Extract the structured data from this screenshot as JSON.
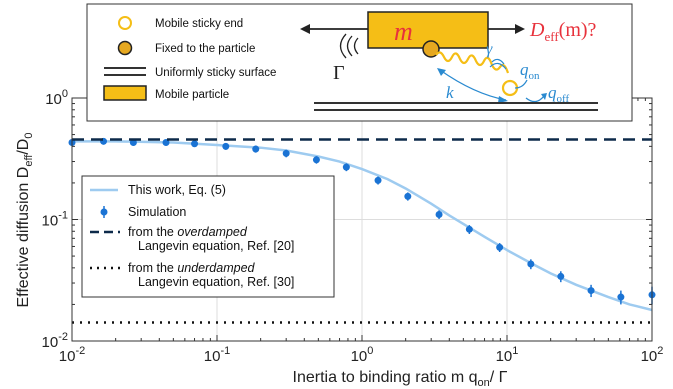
{
  "chart_data": {
    "type": "line",
    "xscale": "log",
    "yscale": "log",
    "xlim": [
      0.01,
      100
    ],
    "ylim": [
      0.01,
      1
    ],
    "grid": true,
    "legend_position": "left",
    "xlabel": "Inertia to binding ratio  m q",
    "xlabel_sub": "on",
    "xlabel_tail": "/ Γ",
    "ylabel": "Effective diffusion  D",
    "ylabel_sub": "eff",
    "ylabel_tail": "/D",
    "ylabel_sub2": "0",
    "x_ticks": [
      {
        "base": "10",
        "exp": "-2"
      },
      {
        "base": "10",
        "exp": "-1"
      },
      {
        "base": "10",
        "exp": "0"
      },
      {
        "base": "10",
        "exp": "1"
      },
      {
        "base": "10",
        "exp": "2"
      }
    ],
    "y_ticks": [
      {
        "base": "10",
        "exp": "-2"
      },
      {
        "base": "10",
        "exp": "-1"
      },
      {
        "base": "10",
        "exp": "0"
      }
    ],
    "series": [
      {
        "name": "This work, Eq. (5)",
        "style": "line",
        "color": "#9ecbf0",
        "x": [
          0.01,
          0.02,
          0.05,
          0.1,
          0.2,
          0.3,
          0.5,
          0.7,
          1,
          1.5,
          2,
          3,
          4,
          5,
          7,
          10,
          15,
          20,
          30,
          50,
          70,
          100
        ],
        "y": [
          0.44,
          0.44,
          0.43,
          0.41,
          0.39,
          0.37,
          0.33,
          0.3,
          0.26,
          0.215,
          0.18,
          0.135,
          0.108,
          0.092,
          0.072,
          0.056,
          0.043,
          0.036,
          0.029,
          0.023,
          0.02,
          0.018
        ]
      },
      {
        "name": "Simulation",
        "style": "errorbar",
        "color": "#1a73d4",
        "x": [
          0.01,
          0.0165,
          0.0265,
          0.0445,
          0.07,
          0.115,
          0.185,
          0.3,
          0.485,
          0.78,
          1.29,
          2.07,
          3.4,
          5.5,
          8.9,
          14.6,
          23.5,
          38,
          61,
          100
        ],
        "y": [
          0.43,
          0.44,
          0.43,
          0.43,
          0.42,
          0.4,
          0.38,
          0.35,
          0.31,
          0.27,
          0.21,
          0.155,
          0.11,
          0.083,
          0.059,
          0.043,
          0.034,
          0.026,
          0.023,
          0.024
        ],
        "err": [
          0.025,
          0.025,
          0.025,
          0.025,
          0.025,
          0.025,
          0.025,
          0.025,
          0.022,
          0.02,
          0.016,
          0.012,
          0.009,
          0.007,
          0.005,
          0.004,
          0.0035,
          0.003,
          0.003,
          0.004
        ]
      },
      {
        "name": "from the overdamped Langevin equation, Ref. [20]",
        "legend_line1_pre": "from the ",
        "legend_line1_em": "overdamped",
        "legend_line2": "Langevin equation, Ref. [20]",
        "style": "dashed",
        "color": "#0d2a4a",
        "x": [
          0.01,
          100
        ],
        "y": [
          0.455,
          0.455
        ]
      },
      {
        "name": "from the underdamped Langevin equation, Ref. [30]",
        "legend_line1_pre": "from the ",
        "legend_line1_em": "underdamped",
        "legend_line2": "Langevin equation, Ref. [30]",
        "style": "dotted",
        "color": "#111111",
        "x": [
          0.01,
          100
        ],
        "y": [
          0.0142,
          0.0142
        ]
      }
    ]
  },
  "inset": {
    "legend": [
      {
        "key": "mobile-sticky-end",
        "label": "Mobile sticky end"
      },
      {
        "key": "fixed-to-particle",
        "label": "Fixed to the particle"
      },
      {
        "key": "sticky-surface",
        "label": "Uniformly sticky surface"
      },
      {
        "key": "mobile-particle",
        "label": "Mobile particle"
      }
    ],
    "mass_label": "m",
    "question_main": "D",
    "question_sub": "eff",
    "question_tail": "(m)?",
    "gamma_big": "Γ",
    "gamma_small": "γ",
    "spring_k": "k",
    "q_on_base": "q",
    "q_on_sub": "on",
    "q_off_base": "q",
    "q_off_sub": "off",
    "colors": {
      "particle": "#f5be16",
      "question": "#e8323c",
      "spring": "#f5be16",
      "rates": "#2a8ad0"
    }
  }
}
